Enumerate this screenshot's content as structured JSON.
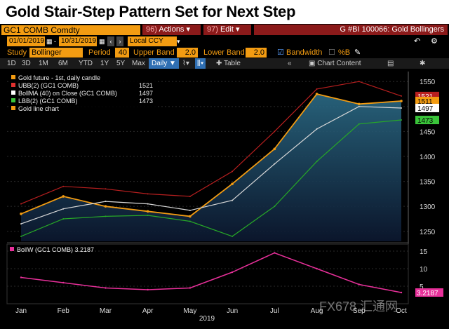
{
  "headline": "Gold Stair-Step Pattern Set for Next Step",
  "header": {
    "ticker": "GC1 COMB Comdty",
    "actions_num": "96)",
    "actions_label": "Actions",
    "edit_num": "97)",
    "edit_label": "Edit",
    "chart_title": "G #BI 100066: Gold Bollingers"
  },
  "dates": {
    "start": "01/01/2019",
    "end": "10/31/2019",
    "currency": "Local CCY"
  },
  "study_row": {
    "study_label": "Study",
    "study_value": "Bollinger",
    "period_label": "Period",
    "period_value": "40",
    "upper_label": "Upper Band",
    "upper_value": "2.0",
    "lower_label": "Lower Band",
    "lower_value": "2.0",
    "bandwidth_label": "Bandwidth",
    "pctb_label": "%B"
  },
  "toolbar": {
    "ranges": [
      "1D",
      "3D",
      "1M",
      "6M",
      "YTD",
      "1Y",
      "5Y",
      "Max"
    ],
    "frequency": "Daily",
    "table_label": "Table",
    "content_label": "Chart Content"
  },
  "legend": [
    {
      "label": "Gold future - 1st, daily candle",
      "value": "",
      "color": "#f39c12"
    },
    {
      "label": "UBB(2) (GC1 COMB)",
      "value": "1521",
      "color": "#e0312f"
    },
    {
      "label": "BollMA (40)  on Close (GC1 COMB)",
      "value": "1497",
      "color": "#ffffff"
    },
    {
      "label": "LBB(2) (GC1 COMB)",
      "value": "1473",
      "color": "#3ac43a"
    },
    {
      "label": "Gold line chart",
      "value": "",
      "color": "#f39c12"
    }
  ],
  "tags": {
    "upper": "1521",
    "close": "1511",
    "ma": "1497",
    "lower": "1473",
    "bandwidth": "3.2187"
  },
  "lower_panel_label": "BollW (GC1 COMB) 3.2187",
  "watermark": "FX678 汇通网",
  "year_label": "2019",
  "colors": {
    "price": "#f39c12",
    "upper": "#b81f1f",
    "ma": "#d8d8d8",
    "lower": "#27a827",
    "bandwidth": "#e8309a"
  },
  "chart_data": [
    {
      "type": "line",
      "title": "Gold Bollingers",
      "x": [
        "Jan",
        "Feb",
        "Mar",
        "Apr",
        "May",
        "Jun",
        "Jul",
        "Aug",
        "Sep",
        "Oct"
      ],
      "ylim": [
        1230,
        1570
      ],
      "yticks": [
        1250,
        1300,
        1350,
        1400,
        1450,
        1500,
        1550
      ],
      "series": [
        {
          "name": "Gold future - 1st, daily candle",
          "values": [
            1285,
            1320,
            1300,
            1290,
            1280,
            1345,
            1415,
            1525,
            1505,
            1511
          ]
        },
        {
          "name": "UBB(2) (GC1 COMB)",
          "values": [
            1305,
            1340,
            1335,
            1325,
            1320,
            1370,
            1450,
            1535,
            1550,
            1521
          ]
        },
        {
          "name": "BollMA (40)  on Close (GC1 COMB)",
          "values": [
            1265,
            1295,
            1310,
            1305,
            1292,
            1312,
            1385,
            1455,
            1500,
            1497
          ]
        },
        {
          "name": "LBB(2) (GC1 COMB)",
          "values": [
            1240,
            1275,
            1280,
            1282,
            1270,
            1240,
            1300,
            1390,
            1465,
            1473
          ]
        }
      ]
    },
    {
      "type": "line",
      "title": "BollW (GC1 COMB) 3.2187",
      "x": [
        "Jan",
        "Feb",
        "Mar",
        "Apr",
        "May",
        "Jun",
        "Jul",
        "Aug",
        "Sep",
        "Oct"
      ],
      "ylim": [
        0,
        17
      ],
      "yticks": [
        5,
        10,
        15
      ],
      "series": [
        {
          "name": "BollW (GC1 COMB)",
          "values": [
            7.5,
            6.0,
            4.5,
            4.0,
            4.5,
            9.0,
            14.5,
            10.0,
            5.5,
            3.2
          ]
        }
      ]
    }
  ]
}
